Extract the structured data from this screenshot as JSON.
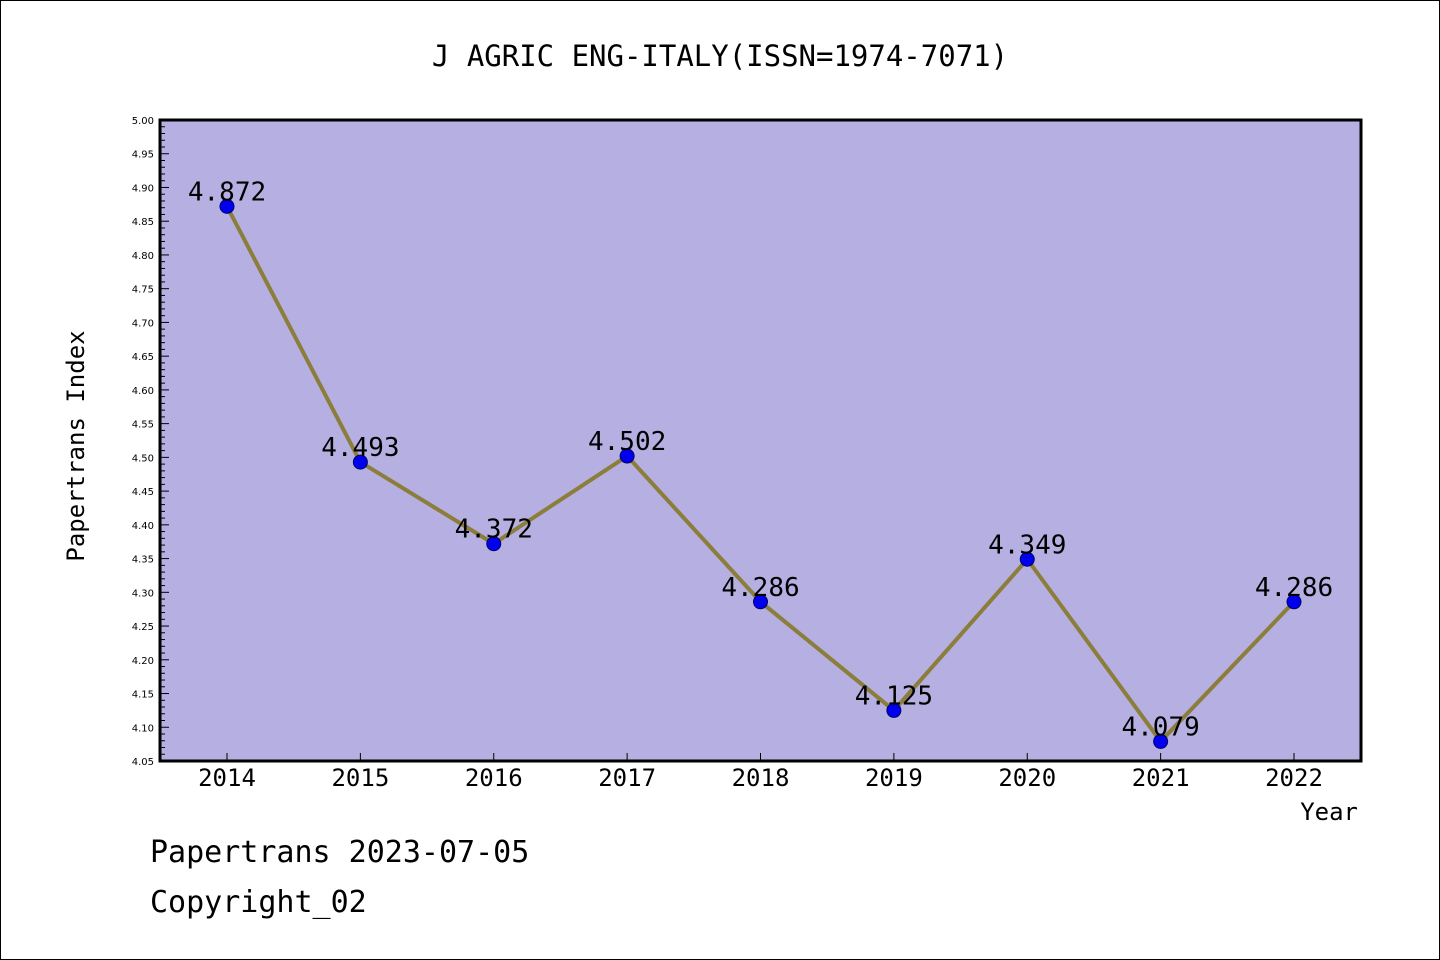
{
  "chart_data": {
    "type": "line",
    "title": "J AGRIC ENG-ITALY(ISSN=1974-7071)",
    "xlabel": "Year",
    "ylabel": "Papertrans Index",
    "categories": [
      "2014",
      "2015",
      "2016",
      "2017",
      "2018",
      "2019",
      "2020",
      "2021",
      "2022"
    ],
    "series": [
      {
        "values": [
          4.872,
          4.493,
          4.372,
          4.502,
          4.286,
          4.125,
          4.349,
          4.079,
          4.286
        ],
        "data_labels": [
          "4.872",
          "4.493",
          "4.372",
          "4.502",
          "4.286",
          "4.125",
          "4.349",
          "4.079",
          "4.286"
        ]
      }
    ],
    "ylim": [
      4.05,
      5.0
    ],
    "yticks": [
      "4.05",
      "4.10",
      "4.15",
      "4.20",
      "4.25",
      "4.30",
      "4.35",
      "4.40",
      "4.45",
      "4.50",
      "4.55",
      "4.60",
      "4.65",
      "4.70",
      "4.75",
      "4.80",
      "4.85",
      "4.90",
      "4.95",
      "5.00"
    ],
    "grid": false,
    "legend": "none",
    "colors": {
      "plot_background": "#b5afe2",
      "line": "#8b7d3a",
      "marker": "#0000ee",
      "marker_edge": "#000066",
      "axes": "#000000",
      "text": "#000000"
    }
  },
  "footer": {
    "date_line": "Papertrans 2023-07-05",
    "copyright_line": "Copyright_02"
  }
}
